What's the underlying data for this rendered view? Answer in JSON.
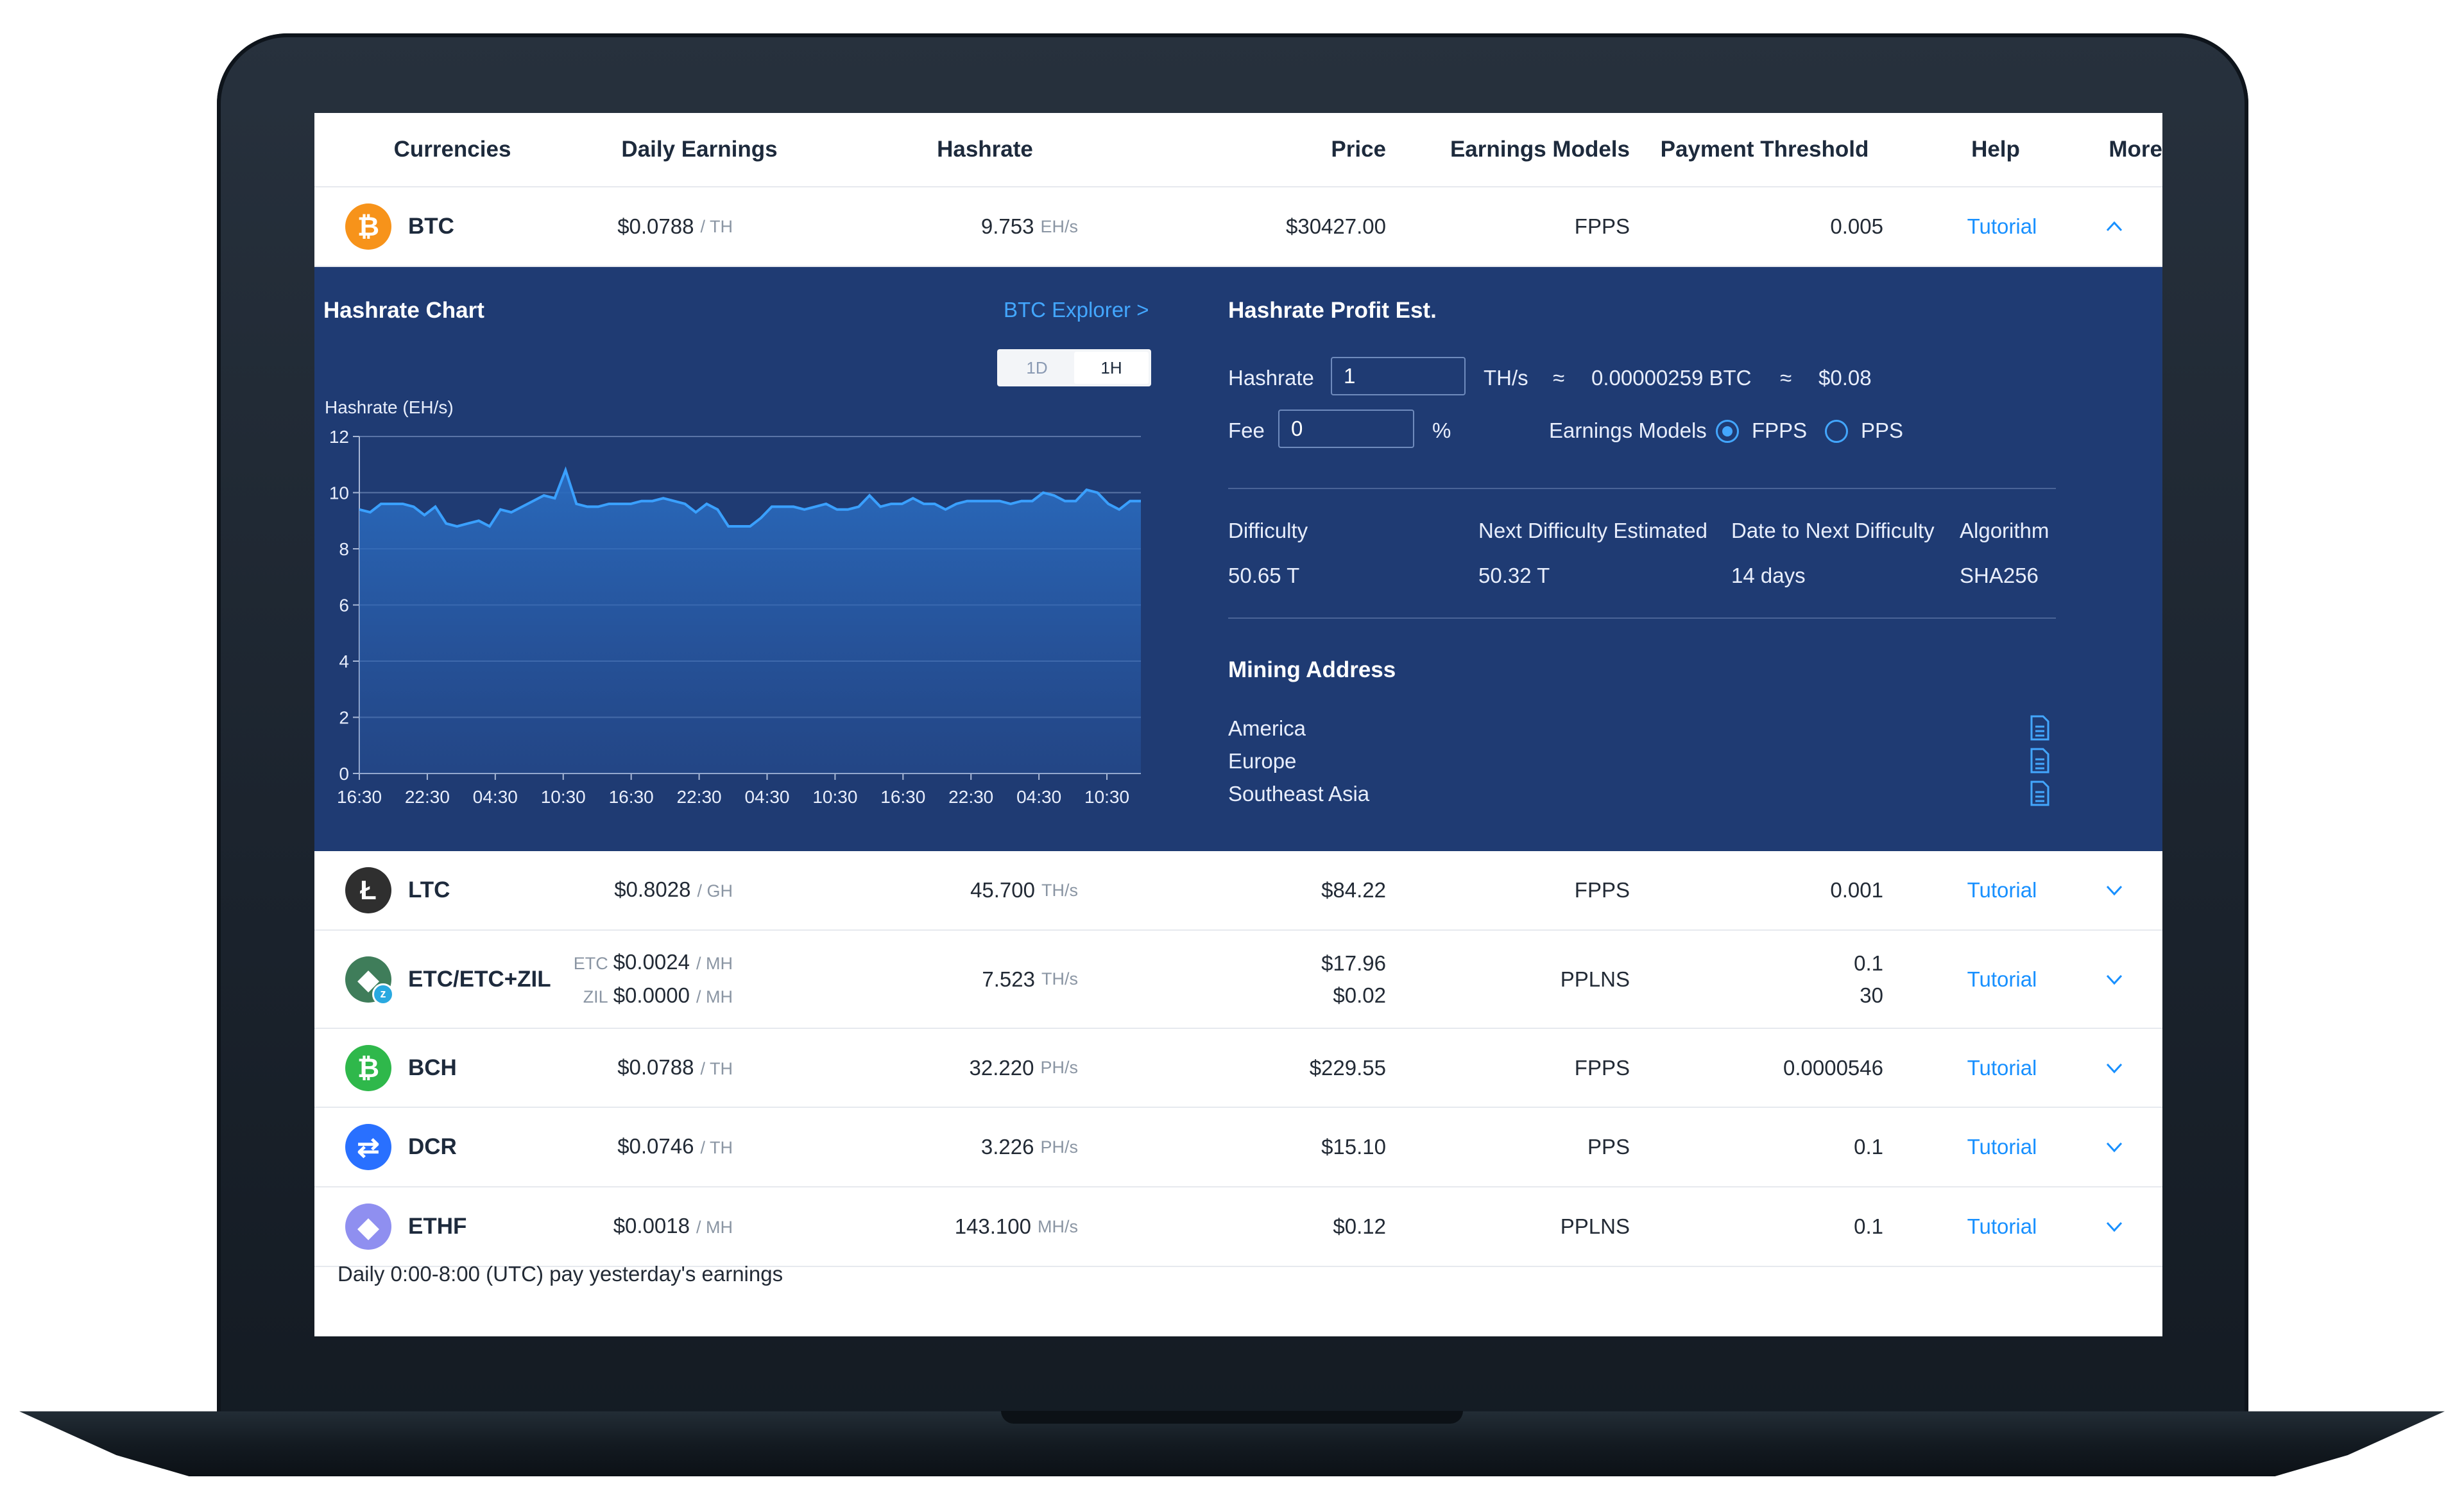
{
  "colors": {
    "panel_bg": "#1f3b73",
    "accent": "#1890ff",
    "btc": "#f7931a",
    "ltc": "#2f2f2f",
    "etc": "#3f7d5a",
    "bch": "#2fb84b",
    "dcr": "#2970ff",
    "ethf": "#8f8ff0"
  },
  "header": {
    "currencies": "Currencies",
    "daily_earnings": "Daily Earnings",
    "hashrate": "Hashrate",
    "price": "Price",
    "earnings_models": "Earnings Models",
    "payment_threshold": "Payment Threshold",
    "help": "Help",
    "more": "More"
  },
  "btc": {
    "icon": "bitcoin-icon",
    "icon_glyph": "₿",
    "name": "BTC",
    "earnings": "$0.0788",
    "earnings_unit": "/ TH",
    "hashrate": "9.753",
    "hashrate_unit": "EH/s",
    "price": "$30427.00",
    "model": "FPPS",
    "threshold": "0.005",
    "help": "Tutorial",
    "more_icon": "chevron-up-icon"
  },
  "panel": {
    "chart_title": "Hashrate Chart",
    "explorer_link": "BTC Explorer >",
    "range_options": [
      "1D",
      "1H"
    ],
    "range_selected": "1H",
    "profit_title": "Hashrate Profit Est.",
    "hashrate_label": "Hashrate",
    "hashrate_value": "1",
    "hashrate_unit": "TH/s",
    "approx": "≈",
    "btc_estimate": "0.00000259 BTC",
    "usd_estimate": "$0.08",
    "fee_label": "Fee",
    "fee_value": "0",
    "fee_unit": "%",
    "earnings_models_label": "Earnings Models",
    "model_options": [
      "FPPS",
      "PPS"
    ],
    "model_selected": "FPPS",
    "stats": [
      {
        "label": "Difficulty",
        "value": "50.65 T"
      },
      {
        "label": "Next Difficulty Estimated",
        "value": "50.32 T"
      },
      {
        "label": "Date to Next Difficulty",
        "value": "14 days"
      },
      {
        "label": "Algorithm",
        "value": "SHA256"
      }
    ],
    "mining_address_title": "Mining Address",
    "regions": [
      "America",
      "Europe",
      "Southeast Asia"
    ],
    "copy_icon": "copy-icon"
  },
  "chart_data": {
    "type": "area",
    "ylabel": "Hashrate (EH/s)",
    "ylim": [
      0,
      12
    ],
    "yticks": [
      0,
      2,
      4,
      6,
      8,
      10,
      12
    ],
    "xtick_labels": [
      "16:30",
      "22:30",
      "04:30",
      "10:30",
      "16:30",
      "22:30",
      "04:30",
      "10:30",
      "16:30",
      "22:30",
      "04:30",
      "10:30"
    ],
    "grid": "horizontal",
    "series": [
      {
        "values": [
          9.4,
          9.3,
          9.6,
          9.6,
          9.6,
          9.5,
          9.2,
          9.5,
          8.9,
          8.8,
          8.9,
          9.0,
          8.8,
          9.4,
          9.3,
          9.5,
          9.7,
          9.9,
          9.8,
          10.8,
          9.6,
          9.5,
          9.5,
          9.6,
          9.6,
          9.6,
          9.7,
          9.7,
          9.8,
          9.7,
          9.6,
          9.3,
          9.6,
          9.4,
          8.8,
          8.8,
          8.8,
          9.1,
          9.5,
          9.5,
          9.5,
          9.4,
          9.5,
          9.6,
          9.4,
          9.4,
          9.5,
          9.9,
          9.5,
          9.6,
          9.6,
          9.8,
          9.6,
          9.6,
          9.4,
          9.6,
          9.7,
          9.7,
          9.7,
          9.7,
          9.6,
          9.7,
          9.7,
          10.0,
          9.9,
          9.7,
          9.7,
          10.1,
          10.0,
          9.6,
          9.4,
          9.7,
          9.7
        ]
      }
    ]
  },
  "rows": [
    {
      "icon": "litecoin-icon",
      "glyph": "Ł",
      "color": "#2f2f2f",
      "name": "LTC",
      "earnings": [
        {
          "pre": "",
          "value": "$0.8028",
          "unit": "/ GH"
        }
      ],
      "hashrate": "45.700",
      "hashrate_unit": "TH/s",
      "price": [
        "$84.22"
      ],
      "model": "FPPS",
      "threshold": [
        "0.001"
      ],
      "help": "Tutorial"
    },
    {
      "icon": "ethereum-classic-zil-icon",
      "glyph": "◆",
      "color": "#3f7d5a",
      "name": "ETC/ETC+ZIL",
      "earnings": [
        {
          "pre": "ETC",
          "value": "$0.0024",
          "unit": "/ MH"
        },
        {
          "pre": "ZIL",
          "value": "$0.0000",
          "unit": "/ MH"
        }
      ],
      "hashrate": "7.523",
      "hashrate_unit": "TH/s",
      "price": [
        "$17.96",
        "$0.02"
      ],
      "model": "PPLNS",
      "threshold": [
        "0.1",
        "30"
      ],
      "help": "Tutorial"
    },
    {
      "icon": "bitcoin-cash-icon",
      "glyph": "₿",
      "color": "#2fb84b",
      "name": "BCH",
      "earnings": [
        {
          "pre": "",
          "value": "$0.0788",
          "unit": "/ TH"
        }
      ],
      "hashrate": "32.220",
      "hashrate_unit": "PH/s",
      "price": [
        "$229.55"
      ],
      "model": "FPPS",
      "threshold": [
        "0.0000546"
      ],
      "help": "Tutorial"
    },
    {
      "icon": "decred-icon",
      "glyph": "⇄",
      "color": "#2970ff",
      "name": "DCR",
      "earnings": [
        {
          "pre": "",
          "value": "$0.0746",
          "unit": "/ TH"
        }
      ],
      "hashrate": "3.226",
      "hashrate_unit": "PH/s",
      "price": [
        "$15.10"
      ],
      "model": "PPS",
      "threshold": [
        "0.1"
      ],
      "help": "Tutorial"
    },
    {
      "icon": "ethereum-fair-icon",
      "glyph": "◆",
      "color": "#8f8ff0",
      "name": "ETHF",
      "earnings": [
        {
          "pre": "",
          "value": "$0.0018",
          "unit": "/ MH"
        }
      ],
      "hashrate": "143.100",
      "hashrate_unit": "MH/s",
      "price": [
        "$0.12"
      ],
      "model": "PPLNS",
      "threshold": [
        "0.1"
      ],
      "help": "Tutorial"
    }
  ],
  "footer": "Daily 0:00-8:00 (UTC) pay yesterday's earnings"
}
